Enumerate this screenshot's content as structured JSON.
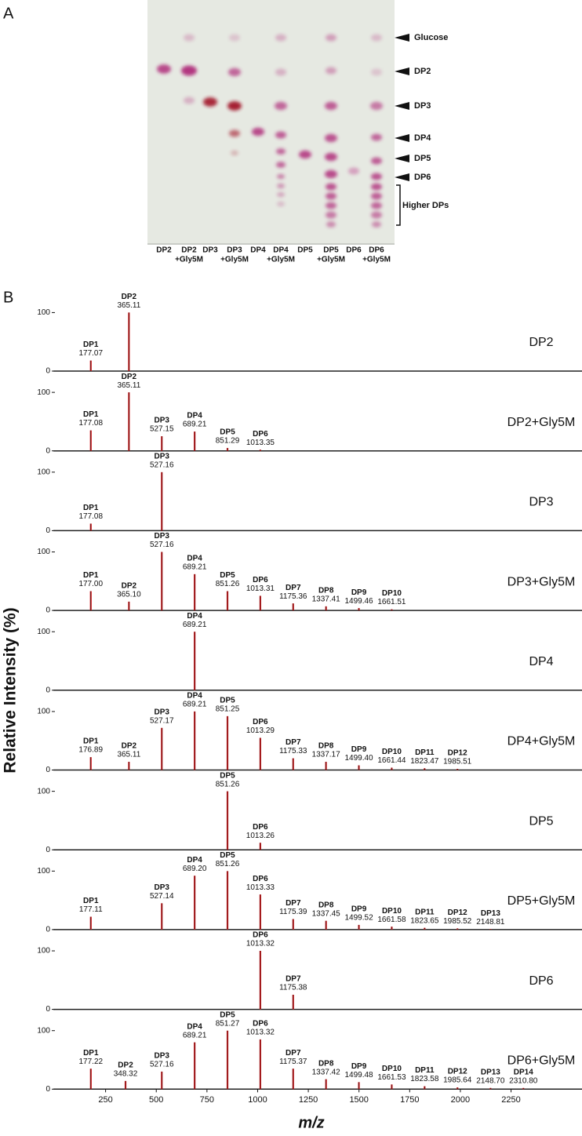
{
  "panels": [
    "A",
    "B"
  ],
  "tlc": {
    "lanes": [
      [
        "DP2"
      ],
      [
        "DP2",
        "+Gly5M"
      ],
      [
        "DP3"
      ],
      [
        "DP3",
        "+Gly5M"
      ],
      [
        "DP4"
      ],
      [
        "DP4",
        "+Gly5M"
      ],
      [
        "DP5"
      ],
      [
        "DP5",
        "+Gly5M"
      ],
      [
        "DP6"
      ],
      [
        "DP6",
        "+Gly5M"
      ]
    ],
    "markers": [
      "Glucose",
      "DP2",
      "DP3",
      "DP4",
      "DP5",
      "DP6"
    ],
    "bracket_label": "Higher DPs"
  },
  "y_axis_label": "Relative Intensity (%)",
  "x_axis": {
    "label": "m/z",
    "xlim": [
      0,
      2600
    ],
    "xticks": [
      250,
      500,
      750,
      1000,
      1250,
      1500,
      1750,
      2000,
      2250
    ]
  },
  "chart_data": [
    {
      "type": "stem",
      "title": "DP2",
      "color": "#d7191c",
      "ylim": [
        0,
        118
      ],
      "yticks": [
        0,
        100
      ],
      "peak_names": [
        "DP1",
        "DP2"
      ],
      "x": [
        177.07,
        365.11
      ],
      "x_labels": [
        "177.07",
        "365.11"
      ],
      "values": [
        18,
        100
      ]
    },
    {
      "type": "stem",
      "title": "DP2+Gly5M",
      "color": "#d7191c",
      "ylim": [
        0,
        118
      ],
      "yticks": [
        0,
        100
      ],
      "peak_names": [
        "DP1",
        "DP2",
        "DP3",
        "DP4",
        "DP5",
        "DP6"
      ],
      "x": [
        177.08,
        365.11,
        527.15,
        689.21,
        851.29,
        1013.35
      ],
      "x_labels": [
        "177.08",
        "365.11",
        "527.15",
        "689.21",
        "851.29",
        "1013.35"
      ],
      "values": [
        35,
        100,
        25,
        33,
        5,
        2
      ]
    },
    {
      "type": "stem",
      "title": "DP3",
      "color": "#d7191c",
      "ylim": [
        0,
        118
      ],
      "yticks": [
        0,
        100
      ],
      "peak_names": [
        "DP1",
        "DP3"
      ],
      "x": [
        177.08,
        527.16
      ],
      "x_labels": [
        "177.08",
        "527.16"
      ],
      "values": [
        12,
        100
      ]
    },
    {
      "type": "stem",
      "title": "DP3+Gly5M",
      "color": "#d7191c",
      "ylim": [
        0,
        118
      ],
      "yticks": [
        0,
        100
      ],
      "peak_names": [
        "DP1",
        "DP2",
        "DP3",
        "DP4",
        "DP5",
        "DP6",
        "DP7",
        "DP8",
        "DP9",
        "DP10"
      ],
      "x": [
        177.0,
        365.1,
        527.16,
        689.21,
        851.26,
        1013.31,
        1175.36,
        1337.41,
        1499.46,
        1661.51
      ],
      "x_labels": [
        "177.00",
        "365.10",
        "527.16",
        "689.21",
        "851.26",
        "1013.31",
        "1175.36",
        "1337.41",
        "1499.46",
        "1661.51"
      ],
      "values": [
        33,
        15,
        100,
        62,
        33,
        25,
        12,
        7,
        4,
        2
      ]
    },
    {
      "type": "stem",
      "title": "DP4",
      "color": "#d7191c",
      "ylim": [
        0,
        118
      ],
      "yticks": [
        0,
        100
      ],
      "peak_names": [
        "DP4"
      ],
      "x": [
        689.21
      ],
      "x_labels": [
        "689.21"
      ],
      "values": [
        100
      ]
    },
    {
      "type": "stem",
      "title": "DP4+Gly5M",
      "color": "#d7191c",
      "ylim": [
        0,
        118
      ],
      "yticks": [
        0,
        100
      ],
      "peak_names": [
        "DP1",
        "DP2",
        "DP3",
        "DP4",
        "DP5",
        "DP6",
        "DP7",
        "DP8",
        "DP9",
        "DP10",
        "DP11",
        "DP12"
      ],
      "x": [
        176.89,
        365.11,
        527.17,
        689.21,
        851.25,
        1013.29,
        1175.33,
        1337.17,
        1499.4,
        1661.44,
        1823.47,
        1985.51
      ],
      "x_labels": [
        "176.89",
        "365.11",
        "527.17",
        "689.21",
        "851.25",
        "1013.29",
        "1175.33",
        "1337.17",
        "1499.40",
        "1661.44",
        "1823.47",
        "1985.51"
      ],
      "values": [
        22,
        14,
        72,
        100,
        92,
        55,
        20,
        14,
        8,
        4,
        3,
        2
      ]
    },
    {
      "type": "stem",
      "title": "DP5",
      "color": "#d7191c",
      "ylim": [
        0,
        118
      ],
      "yticks": [
        0,
        100
      ],
      "peak_names": [
        "DP5",
        "DP6"
      ],
      "x": [
        851.26,
        1013.26
      ],
      "x_labels": [
        "851.26",
        "1013.26"
      ],
      "values": [
        100,
        12
      ]
    },
    {
      "type": "stem",
      "title": "DP5+Gly5M",
      "color": "#d7191c",
      "ylim": [
        0,
        118
      ],
      "yticks": [
        0,
        100
      ],
      "peak_names": [
        "DP1",
        "DP3",
        "DP4",
        "DP5",
        "DP6",
        "DP7",
        "DP8",
        "DP9",
        "DP10",
        "DP11",
        "DP12",
        "DP13"
      ],
      "x": [
        177.11,
        527.14,
        689.2,
        851.26,
        1013.33,
        1175.39,
        1337.45,
        1499.52,
        1661.58,
        1823.65,
        1985.52,
        2148.81
      ],
      "x_labels": [
        "177.11",
        "527.14",
        "689.20",
        "851.26",
        "1013.33",
        "1175.39",
        "1337.45",
        "1499.52",
        "1661.58",
        "1823.65",
        "1985.52",
        "2148.81"
      ],
      "values": [
        22,
        45,
        92,
        100,
        60,
        18,
        15,
        8,
        5,
        3,
        2,
        1
      ]
    },
    {
      "type": "stem",
      "title": "DP6",
      "color": "#d7191c",
      "ylim": [
        0,
        118
      ],
      "yticks": [
        0,
        100
      ],
      "peak_names": [
        "DP6",
        "DP7"
      ],
      "x": [
        1013.32,
        1175.38
      ],
      "x_labels": [
        "1013.32",
        "1175.38"
      ],
      "values": [
        100,
        25
      ]
    },
    {
      "type": "stem",
      "title": "DP6+Gly5M",
      "color": "#d7191c",
      "ylim": [
        0,
        118
      ],
      "yticks": [
        0,
        100
      ],
      "peak_names": [
        "DP1",
        "DP2",
        "DP3",
        "DP4",
        "DP5",
        "DP6",
        "DP7",
        "DP8",
        "DP9",
        "DP10",
        "DP11",
        "DP12",
        "DP13",
        "DP14"
      ],
      "x": [
        177.22,
        348.32,
        527.16,
        689.21,
        851.27,
        1013.32,
        1175.37,
        1337.42,
        1499.48,
        1661.53,
        1823.58,
        1985.64,
        2148.7,
        2310.8
      ],
      "x_labels": [
        "177.22",
        "348.32",
        "527.16",
        "689.21",
        "851.27",
        "1013.32",
        "1175.37",
        "1337.42",
        "1499.48",
        "1661.53",
        "1823.58",
        "1985.64",
        "2148.70",
        "2310.80"
      ],
      "values": [
        35,
        14,
        30,
        80,
        100,
        85,
        35,
        17,
        12,
        8,
        5,
        3,
        2,
        2
      ]
    }
  ]
}
